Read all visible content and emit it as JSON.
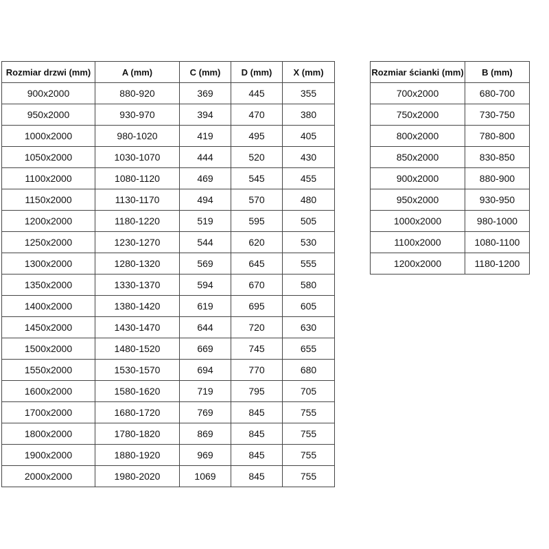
{
  "door_table": {
    "headers": [
      "Rozmiar drzwi (mm)",
      "A (mm)",
      "C (mm)",
      "D (mm)",
      "X (mm)"
    ],
    "rows": [
      [
        "900x2000",
        "880-920",
        "369",
        "445",
        "355"
      ],
      [
        "950x2000",
        "930-970",
        "394",
        "470",
        "380"
      ],
      [
        "1000x2000",
        "980-1020",
        "419",
        "495",
        "405"
      ],
      [
        "1050x2000",
        "1030-1070",
        "444",
        "520",
        "430"
      ],
      [
        "1100x2000",
        "1080-1120",
        "469",
        "545",
        "455"
      ],
      [
        "1150x2000",
        "1130-1170",
        "494",
        "570",
        "480"
      ],
      [
        "1200x2000",
        "1180-1220",
        "519",
        "595",
        "505"
      ],
      [
        "1250x2000",
        "1230-1270",
        "544",
        "620",
        "530"
      ],
      [
        "1300x2000",
        "1280-1320",
        "569",
        "645",
        "555"
      ],
      [
        "1350x2000",
        "1330-1370",
        "594",
        "670",
        "580"
      ],
      [
        "1400x2000",
        "1380-1420",
        "619",
        "695",
        "605"
      ],
      [
        "1450x2000",
        "1430-1470",
        "644",
        "720",
        "630"
      ],
      [
        "1500x2000",
        "1480-1520",
        "669",
        "745",
        "655"
      ],
      [
        "1550x2000",
        "1530-1570",
        "694",
        "770",
        "680"
      ],
      [
        "1600x2000",
        "1580-1620",
        "719",
        "795",
        "705"
      ],
      [
        "1700x2000",
        "1680-1720",
        "769",
        "845",
        "755"
      ],
      [
        "1800x2000",
        "1780-1820",
        "869",
        "845",
        "755"
      ],
      [
        "1900x2000",
        "1880-1920",
        "969",
        "845",
        "755"
      ],
      [
        "2000x2000",
        "1980-2020",
        "1069",
        "845",
        "755"
      ]
    ]
  },
  "wall_table": {
    "headers": [
      "Rozmiar ścianki (mm)",
      "B (mm)"
    ],
    "rows": [
      [
        "700x2000",
        "680-700"
      ],
      [
        "750x2000",
        "730-750"
      ],
      [
        "800x2000",
        "780-800"
      ],
      [
        "850x2000",
        "830-850"
      ],
      [
        "900x2000",
        "880-900"
      ],
      [
        "950x2000",
        "930-950"
      ],
      [
        "1000x2000",
        "980-1000"
      ],
      [
        "1100x2000",
        "1080-1100"
      ],
      [
        "1200x2000",
        "1180-1200"
      ]
    ]
  }
}
